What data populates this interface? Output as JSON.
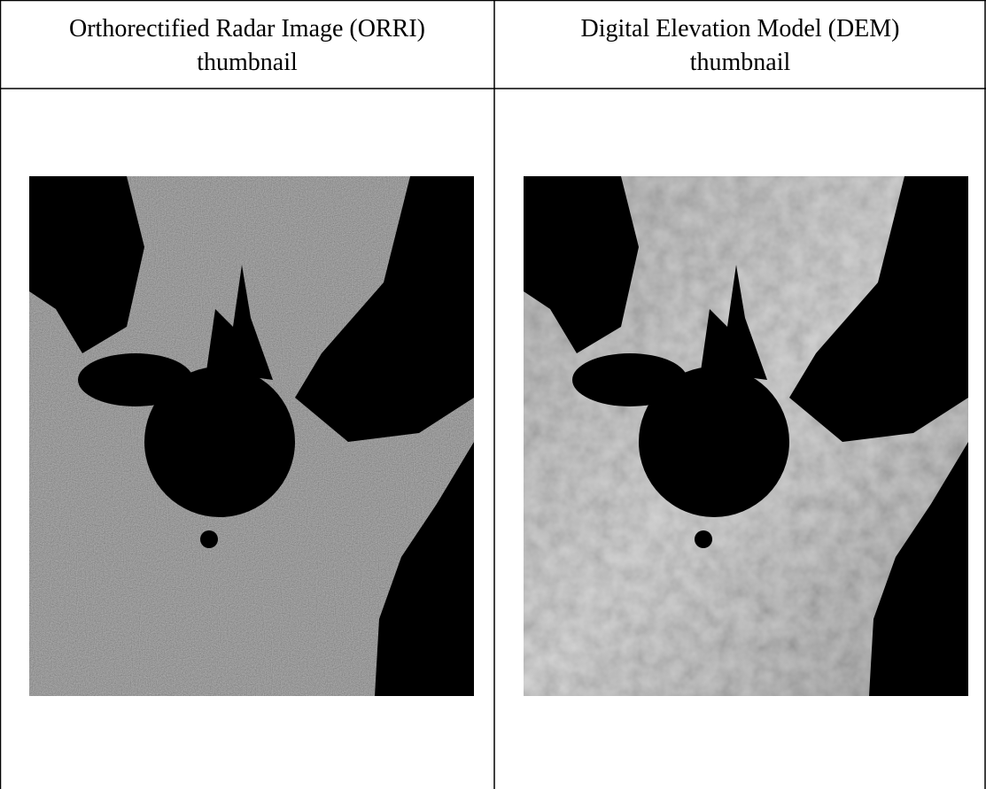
{
  "table": {
    "header": [
      [
        "Orthorectified Radar Image (ORRI)",
        "thumbnail"
      ],
      [
        "Digital Elevation Model (DEM)",
        "thumbnail"
      ]
    ]
  }
}
